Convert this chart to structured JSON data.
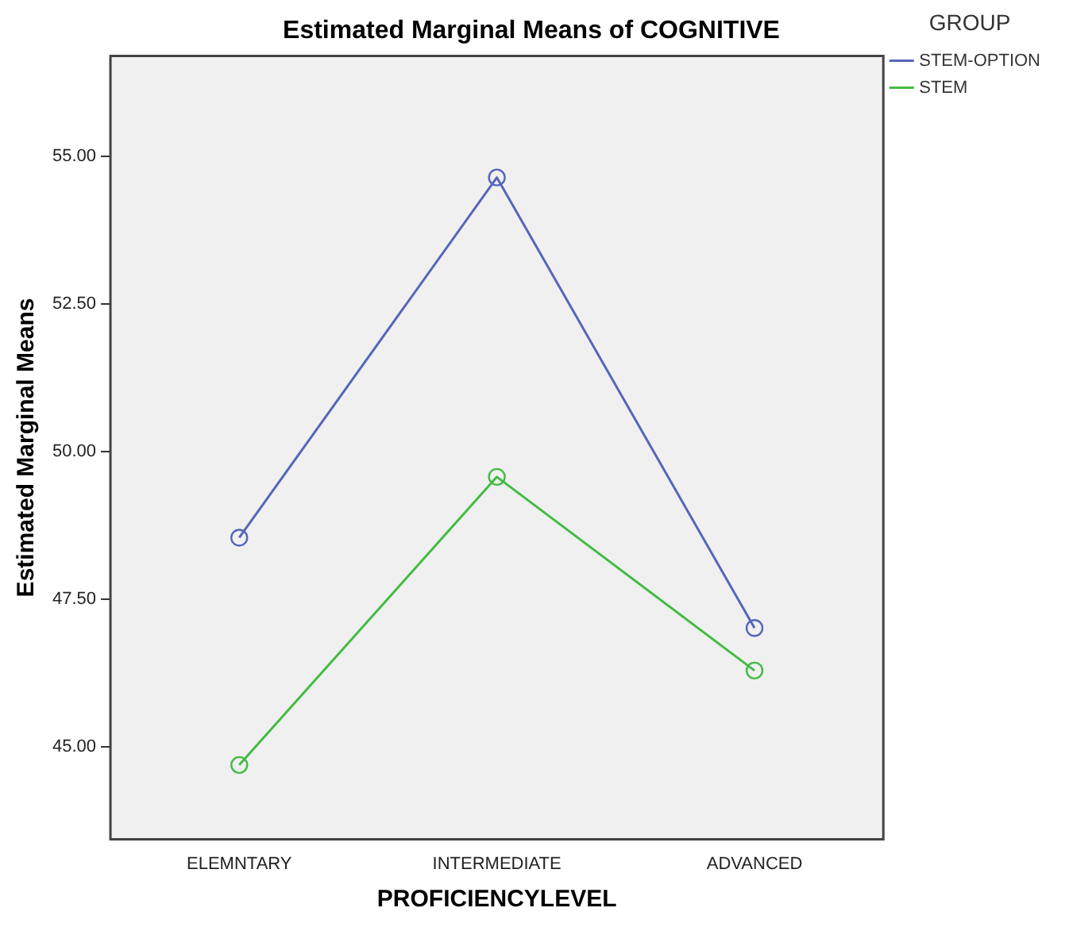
{
  "chart_data": {
    "type": "line",
    "title": "Estimated Marginal Means of COGNITIVE",
    "xlabel": "PROFICIENCYLEVEL",
    "ylabel": "Estimated Marginal Means",
    "legend_title": "GROUP",
    "categories": [
      "ELEMNTARY",
      "INTERMEDIATE",
      "ADVANCED"
    ],
    "series": [
      {
        "name": "STEM-OPTION",
        "color": "#5566bb",
        "values": [
          48.54,
          54.64,
          47.01
        ]
      },
      {
        "name": "STEM",
        "color": "#44bb44",
        "values": [
          44.69,
          49.57,
          46.29
        ]
      }
    ],
    "ylim": [
      43.43,
      56.7
    ],
    "yticks": [
      {
        "value": 45,
        "label": "45.00"
      },
      {
        "value": 47.5,
        "label": "47.50"
      },
      {
        "value": 50,
        "label": "50.00"
      },
      {
        "value": 52.5,
        "label": "52.50"
      },
      {
        "value": 55,
        "label": "55.00"
      }
    ],
    "grid": false,
    "legend": "right",
    "marker": "circle",
    "line_style": "solid"
  }
}
